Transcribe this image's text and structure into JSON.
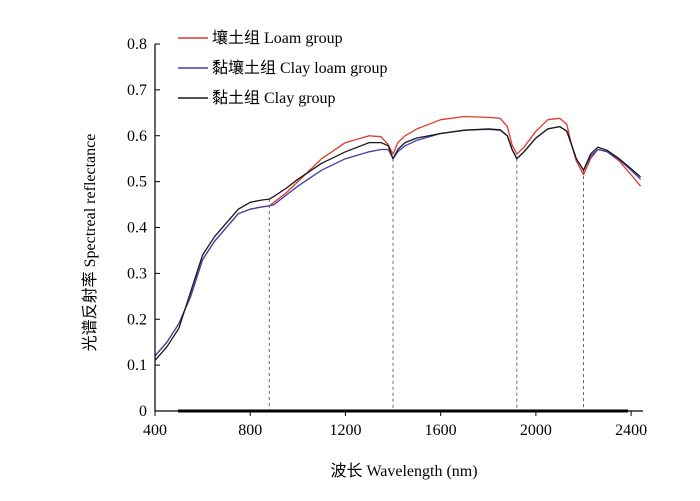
{
  "chart_data": {
    "type": "line",
    "title": "",
    "xlabel": "波长 Wavelength (nm)",
    "ylabel": "光谱反射率 Spectreal reflectance",
    "xlim": [
      400,
      2450
    ],
    "ylim": [
      0,
      0.8
    ],
    "xticks": [
      400,
      800,
      1200,
      1600,
      2000,
      2400
    ],
    "xtick_labels": [
      "400",
      "800",
      "1200",
      "1600",
      "2000",
      "2400"
    ],
    "yticks": [
      0,
      0.1,
      0.2,
      0.3,
      0.4,
      0.5,
      0.6,
      0.7,
      0.8
    ],
    "ytick_labels": [
      "0",
      "0.1",
      "0.2",
      "0.3",
      "0.4",
      "0.5",
      "0.6",
      "0.7",
      "0.8"
    ],
    "grid": false,
    "legend_position": "top-left",
    "reference_lines_x": [
      880,
      1400,
      1920,
      2200
    ],
    "colors": {
      "loam": "#e03a2e",
      "clay_loam": "#3b3fb0",
      "clay": "#1a1a1a",
      "axis": "#000000",
      "refline": "#555555"
    },
    "series": [
      {
        "name": "壤土组 Loam group",
        "color": "#e03a2e",
        "x": [
          400,
          450,
          500,
          550,
          600,
          650,
          700,
          750,
          800,
          850,
          880,
          900,
          950,
          1000,
          1100,
          1200,
          1300,
          1350,
          1380,
          1400,
          1420,
          1450,
          1500,
          1600,
          1700,
          1800,
          1850,
          1880,
          1900,
          1920,
          1950,
          2000,
          2050,
          2100,
          2130,
          2150,
          2170,
          2200,
          2230,
          2260,
          2300,
          2350,
          2400,
          2440
        ],
        "y": [
          0.12,
          0.15,
          0.19,
          0.25,
          0.33,
          0.37,
          0.4,
          0.43,
          0.44,
          0.445,
          0.447,
          0.455,
          0.475,
          0.5,
          0.55,
          0.585,
          0.6,
          0.598,
          0.58,
          0.56,
          0.585,
          0.6,
          0.615,
          0.635,
          0.642,
          0.64,
          0.638,
          0.62,
          0.58,
          0.56,
          0.575,
          0.61,
          0.635,
          0.638,
          0.625,
          0.58,
          0.545,
          0.515,
          0.55,
          0.57,
          0.565,
          0.545,
          0.515,
          0.49
        ]
      },
      {
        "name": "黏壤土组 Clay loam group",
        "color": "#3b3fb0",
        "x": [
          400,
          450,
          500,
          550,
          600,
          650,
          700,
          750,
          800,
          850,
          880,
          900,
          950,
          1000,
          1100,
          1200,
          1300,
          1350,
          1380,
          1400,
          1420,
          1450,
          1500,
          1600,
          1700,
          1800,
          1850,
          1880,
          1900,
          1920,
          1950,
          2000,
          2050,
          2100,
          2130,
          2150,
          2170,
          2200,
          2230,
          2260,
          2300,
          2350,
          2400,
          2440
        ],
        "y": [
          0.12,
          0.15,
          0.19,
          0.25,
          0.33,
          0.37,
          0.4,
          0.43,
          0.44,
          0.445,
          0.447,
          0.45,
          0.47,
          0.49,
          0.525,
          0.55,
          0.565,
          0.57,
          0.57,
          0.55,
          0.565,
          0.578,
          0.59,
          0.605,
          0.612,
          0.614,
          0.612,
          0.6,
          0.57,
          0.55,
          0.565,
          0.595,
          0.615,
          0.62,
          0.61,
          0.58,
          0.55,
          0.525,
          0.555,
          0.57,
          0.565,
          0.548,
          0.525,
          0.505
        ]
      },
      {
        "name": "黏土组 Clay group",
        "color": "#1a1a1a",
        "x": [
          400,
          450,
          500,
          550,
          600,
          650,
          700,
          750,
          800,
          850,
          880,
          900,
          950,
          1000,
          1100,
          1200,
          1300,
          1350,
          1380,
          1400,
          1420,
          1450,
          1500,
          1600,
          1700,
          1800,
          1850,
          1880,
          1900,
          1920,
          1950,
          2000,
          2050,
          2100,
          2130,
          2150,
          2170,
          2200,
          2230,
          2260,
          2300,
          2350,
          2400,
          2440
        ],
        "y": [
          0.11,
          0.14,
          0.18,
          0.26,
          0.34,
          0.38,
          0.41,
          0.44,
          0.455,
          0.46,
          0.462,
          0.468,
          0.485,
          0.505,
          0.54,
          0.565,
          0.585,
          0.585,
          0.578,
          0.55,
          0.57,
          0.585,
          0.595,
          0.605,
          0.612,
          0.615,
          0.613,
          0.6,
          0.57,
          0.55,
          0.565,
          0.595,
          0.615,
          0.62,
          0.61,
          0.58,
          0.55,
          0.525,
          0.56,
          0.575,
          0.568,
          0.55,
          0.528,
          0.51
        ]
      }
    ]
  }
}
